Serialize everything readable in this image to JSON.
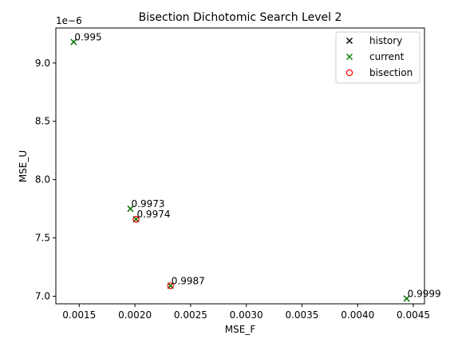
{
  "chart_data": {
    "type": "scatter",
    "title": "Bisection Dichotomic Search Level 2",
    "xlabel": "MSE_F",
    "ylabel": "MSE_U",
    "y_offset_label": "1e−6",
    "xlim": [
      0.00129,
      0.0046
    ],
    "ylim": [
      6.935,
      9.3
    ],
    "x_ticks": [
      0.0015,
      0.002,
      0.0025,
      0.003,
      0.0035,
      0.004,
      0.0045
    ],
    "x_tick_labels": [
      "0.0015",
      "0.0020",
      "0.0025",
      "0.0030",
      "0.0035",
      "0.0040",
      "0.0045"
    ],
    "y_ticks": [
      7.0,
      7.5,
      8.0,
      8.5,
      9.0
    ],
    "y_tick_labels": [
      "7.0",
      "7.5",
      "8.0",
      "8.5",
      "9.0"
    ],
    "grid": false,
    "legend_position": "top-right",
    "legend": [
      {
        "name": "history",
        "marker": "x",
        "color": "#000000"
      },
      {
        "name": "current",
        "marker": "x",
        "color": "#008000"
      },
      {
        "name": "bisection",
        "marker": "o",
        "color": "#ff0000"
      }
    ],
    "series": [
      {
        "name": "history",
        "marker": "x",
        "color": "#000000",
        "points": [
          {
            "x": 0.00145,
            "y": 9.18
          },
          {
            "x": 0.00196,
            "y": 7.75
          },
          {
            "x": 0.00201,
            "y": 7.66
          },
          {
            "x": 0.00232,
            "y": 7.09
          },
          {
            "x": 0.00444,
            "y": 6.98
          }
        ]
      },
      {
        "name": "current",
        "marker": "x",
        "color": "#008000",
        "points": [
          {
            "x": 0.00145,
            "y": 9.18,
            "label": "0.995"
          },
          {
            "x": 0.00196,
            "y": 7.75,
            "label": "0.9973"
          },
          {
            "x": 0.00201,
            "y": 7.66,
            "label": "0.9974"
          },
          {
            "x": 0.00232,
            "y": 7.09,
            "label": "0.9987"
          },
          {
            "x": 0.00444,
            "y": 6.98,
            "label": "0.9999"
          }
        ]
      },
      {
        "name": "bisection",
        "marker": "o",
        "color": "#ff0000",
        "points": [
          {
            "x": 0.00201,
            "y": 7.66
          },
          {
            "x": 0.00232,
            "y": 7.09
          }
        ]
      }
    ]
  }
}
